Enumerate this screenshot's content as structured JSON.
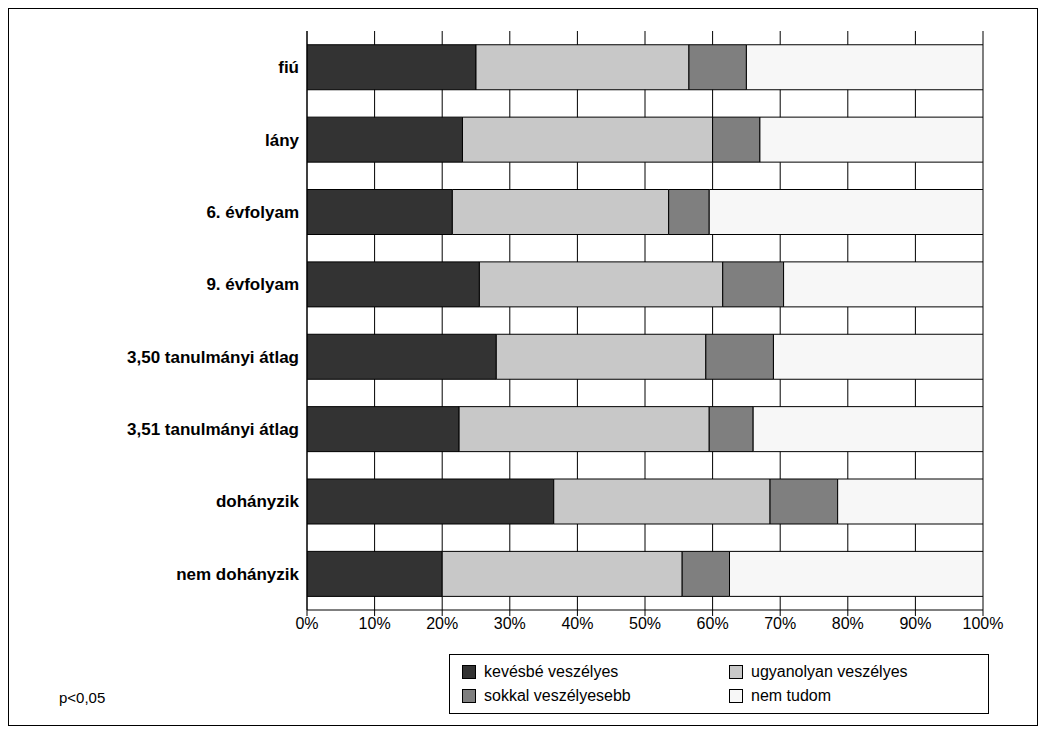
{
  "chart_data": {
    "type": "bar",
    "orientation": "horizontal",
    "stacked": true,
    "grid": true,
    "legend": "lower right",
    "annotation": "p<0,05",
    "categories": [
      "fiú",
      "lány",
      "6. évfolyam",
      "9. évfolyam",
      "3,50 tanulmányi átlag",
      "3,51 tanulmányi átlag",
      "dohányzik",
      "nem dohányzik"
    ],
    "series": [
      {
        "name": "kevésbé veszélyes",
        "color": "#333333",
        "values": [
          25,
          23,
          21.5,
          25.5,
          28,
          22.5,
          36.5,
          20
        ]
      },
      {
        "name": "ugyanolyan veszélyes",
        "color": "#c8c8c8",
        "values": [
          31.5,
          37,
          32,
          36,
          31,
          37,
          32,
          35.5
        ]
      },
      {
        "name": "sokkal veszélyesebb",
        "color": "#7f7f7f",
        "values": [
          8.5,
          7,
          6,
          9,
          10,
          6.5,
          10,
          7
        ]
      },
      {
        "name": "nem tudom",
        "color": "#f7f7f7",
        "values": [
          35,
          33,
          40.5,
          29.5,
          31,
          34,
          21.5,
          37.5
        ]
      }
    ],
    "xlim": [
      0,
      100
    ],
    "xticks": [
      {
        "value": 0,
        "label": "0%"
      },
      {
        "value": 10,
        "label": "10%"
      },
      {
        "value": 20,
        "label": "20%"
      },
      {
        "value": 30,
        "label": "30%"
      },
      {
        "value": 40,
        "label": "40%"
      },
      {
        "value": 50,
        "label": "50%"
      },
      {
        "value": 60,
        "label": "60%"
      },
      {
        "value": 70,
        "label": "70%"
      },
      {
        "value": 80,
        "label": "80%"
      },
      {
        "value": 90,
        "label": "90%"
      },
      {
        "value": 100,
        "label": "100%"
      }
    ]
  }
}
